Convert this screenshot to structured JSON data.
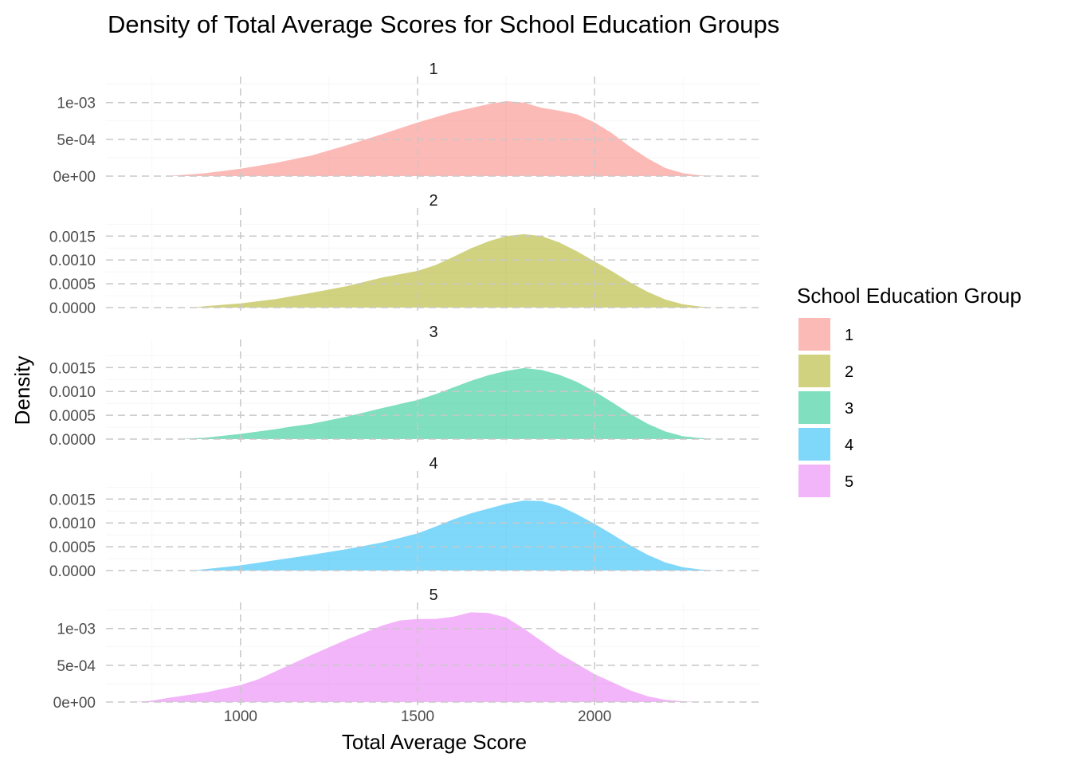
{
  "chart_data": {
    "type": "area",
    "subtype": "faceted-density",
    "title": "Density of Total Average Scores for School Education Groups",
    "xlabel": "Total Average Score",
    "ylabel": "Density",
    "xlim": [
      620,
      2470
    ],
    "x_ticks": [
      1000,
      1500,
      2000
    ],
    "x_tick_labels": [
      "1000",
      "1500",
      "2000"
    ],
    "legend": {
      "title": "School Education Group",
      "position": "right",
      "entries": [
        {
          "label": "1",
          "color": "#F8766D"
        },
        {
          "label": "2",
          "color": "#A3A500"
        },
        {
          "label": "3",
          "color": "#00BF7D"
        },
        {
          "label": "4",
          "color": "#00B0F6"
        },
        {
          "label": "5",
          "color": "#E76BF3"
        }
      ]
    },
    "grid": true,
    "dashed_reference_lines": true,
    "fill_opacity": 0.5,
    "panels": [
      {
        "strip_label": "1",
        "color": "#F8766D",
        "ylim": [
          0,
          0.00129
        ],
        "y_ticks": [
          0,
          0.0005,
          0.001
        ],
        "y_tick_labels": [
          "0e+00",
          "5e-04",
          "1e-03"
        ],
        "x": [
          800,
          900,
          1000,
          1100,
          1200,
          1300,
          1400,
          1500,
          1600,
          1700,
          1750,
          1800,
          1850,
          1900,
          1950,
          2000,
          2050,
          2100,
          2150,
          2200,
          2250,
          2300,
          2350
        ],
        "y": [
          5e-06,
          4e-05,
          0.0001,
          0.00018,
          0.00028,
          0.00042,
          0.00057,
          0.00073,
          0.00087,
          0.00098,
          0.00102,
          0.001,
          0.00093,
          0.00089,
          0.00084,
          0.00073,
          0.00058,
          0.0004,
          0.00024,
          0.00011,
          4e-05,
          1e-05,
          0.0
        ]
      },
      {
        "strip_label": "2",
        "color": "#A3A500",
        "ylim": [
          0,
          0.00199
        ],
        "y_ticks": [
          0,
          0.0005,
          0.001,
          0.0015
        ],
        "y_tick_labels": [
          "0.0000",
          "0.0005",
          "0.0010",
          "0.0015"
        ],
        "x": [
          860,
          900,
          1000,
          1100,
          1200,
          1300,
          1400,
          1500,
          1550,
          1600,
          1650,
          1700,
          1750,
          1800,
          1850,
          1900,
          1950,
          2000,
          2050,
          2100,
          2150,
          2200,
          2250,
          2300,
          2340
        ],
        "y": [
          0.0,
          3e-05,
          9e-05,
          0.00018,
          0.00031,
          0.00045,
          0.00063,
          0.00077,
          0.00089,
          0.00106,
          0.00124,
          0.00139,
          0.0015,
          0.00154,
          0.0015,
          0.00137,
          0.00118,
          0.00097,
          0.00076,
          0.00053,
          0.00033,
          0.00017,
          7e-05,
          2e-05,
          0.0
        ]
      },
      {
        "strip_label": "3",
        "color": "#00BF7D",
        "ylim": [
          0,
          0.00199
        ],
        "y_ticks": [
          0,
          0.0005,
          0.001,
          0.0015
        ],
        "y_tick_labels": [
          "0.0000",
          "0.0005",
          "0.0010",
          "0.0015"
        ],
        "x": [
          820,
          900,
          1000,
          1100,
          1150,
          1200,
          1300,
          1400,
          1500,
          1550,
          1600,
          1650,
          1700,
          1750,
          1800,
          1850,
          1900,
          1950,
          2000,
          2050,
          2100,
          2150,
          2200,
          2250,
          2300,
          2340
        ],
        "y": [
          0.0,
          3e-05,
          0.00011,
          0.00021,
          0.00027,
          0.00032,
          0.00047,
          0.00065,
          0.00082,
          0.00094,
          0.00108,
          0.00122,
          0.00134,
          0.00143,
          0.00149,
          0.00145,
          0.00135,
          0.0012,
          0.001,
          0.00077,
          0.00053,
          0.00032,
          0.00016,
          6e-05,
          2e-05,
          0.0
        ]
      },
      {
        "strip_label": "4",
        "color": "#00B0F6",
        "ylim": [
          0,
          0.00199
        ],
        "y_ticks": [
          0,
          0.0005,
          0.001,
          0.0015
        ],
        "y_tick_labels": [
          "0.0000",
          "0.0005",
          "0.0010",
          "0.0015"
        ],
        "x": [
          860,
          900,
          1000,
          1100,
          1200,
          1300,
          1400,
          1500,
          1550,
          1600,
          1650,
          1700,
          1750,
          1800,
          1850,
          1900,
          1950,
          2000,
          2050,
          2100,
          2150,
          2200,
          2250,
          2300,
          2350
        ],
        "y": [
          0.0,
          3e-05,
          0.00011,
          0.00022,
          0.00033,
          0.00045,
          0.00059,
          0.00078,
          0.00092,
          0.00107,
          0.0012,
          0.0013,
          0.0014,
          0.00147,
          0.00146,
          0.00136,
          0.00118,
          0.00098,
          0.00076,
          0.00053,
          0.00033,
          0.00017,
          7e-05,
          2e-05,
          0.0
        ]
      },
      {
        "strip_label": "5",
        "color": "#E76BF3",
        "ylim": [
          0,
          0.00129
        ],
        "y_ticks": [
          0,
          0.0005,
          0.001
        ],
        "y_tick_labels": [
          "0e+00",
          "5e-04",
          "1e-03"
        ],
        "x": [
          700,
          750,
          800,
          900,
          1000,
          1050,
          1100,
          1200,
          1300,
          1400,
          1450,
          1500,
          1550,
          1600,
          1650,
          1700,
          1750,
          1800,
          1850,
          1900,
          1950,
          2000,
          2050,
          2100,
          2150,
          2200,
          2250,
          2300
        ],
        "y": [
          0.0,
          2e-05,
          6e-05,
          0.00013,
          0.00023,
          0.00031,
          0.00042,
          0.00064,
          0.00085,
          0.00104,
          0.00111,
          0.00113,
          0.00113,
          0.00116,
          0.00122,
          0.00121,
          0.00115,
          0.001,
          0.00083,
          0.00066,
          0.00052,
          0.00038,
          0.00027,
          0.00016,
          8e-05,
          3e-05,
          1e-05,
          0.0
        ]
      }
    ]
  }
}
